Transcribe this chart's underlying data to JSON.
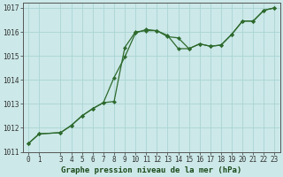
{
  "title": "Graphe pression niveau de la mer (hPa)",
  "bg_color": "#cce8e8",
  "grid_color": "#aad4d4",
  "line_color": "#2d6a2d",
  "marker_color": "#2d6a2d",
  "xlim": [
    -0.5,
    23.5
  ],
  "ylim": [
    1011.0,
    1017.2
  ],
  "xticks": [
    0,
    1,
    3,
    4,
    5,
    6,
    7,
    8,
    9,
    10,
    11,
    12,
    13,
    14,
    15,
    16,
    17,
    18,
    19,
    20,
    21,
    22,
    23
  ],
  "yticks": [
    1011,
    1012,
    1013,
    1014,
    1015,
    1016,
    1017
  ],
  "series1_x": [
    0,
    1,
    3,
    4,
    5,
    6,
    7,
    8,
    9,
    10,
    11,
    12,
    13,
    14,
    15,
    16,
    17,
    18,
    19,
    20,
    21,
    22,
    23
  ],
  "series1_y": [
    1011.35,
    1011.75,
    1011.8,
    1012.1,
    1012.5,
    1012.8,
    1013.05,
    1013.1,
    1015.35,
    1016.0,
    1016.05,
    1016.05,
    1015.8,
    1015.75,
    1015.3,
    1015.5,
    1015.4,
    1015.45,
    1015.9,
    1016.45,
    1016.45,
    1016.9,
    1017.0
  ],
  "series2_x": [
    0,
    1,
    3,
    4,
    5,
    6,
    7,
    8,
    9,
    10,
    11,
    12,
    13,
    14,
    15,
    16,
    17,
    18,
    19,
    20,
    21,
    22,
    23
  ],
  "series2_y": [
    1011.35,
    1011.75,
    1011.8,
    1012.1,
    1012.5,
    1012.8,
    1013.05,
    1014.1,
    1014.95,
    1015.95,
    1016.1,
    1016.05,
    1015.85,
    1015.3,
    1015.3,
    1015.5,
    1015.4,
    1015.45,
    1015.9,
    1016.45,
    1016.45,
    1016.9,
    1017.0
  ],
  "tick_fontsize": 5.5,
  "label_fontsize": 6.5
}
